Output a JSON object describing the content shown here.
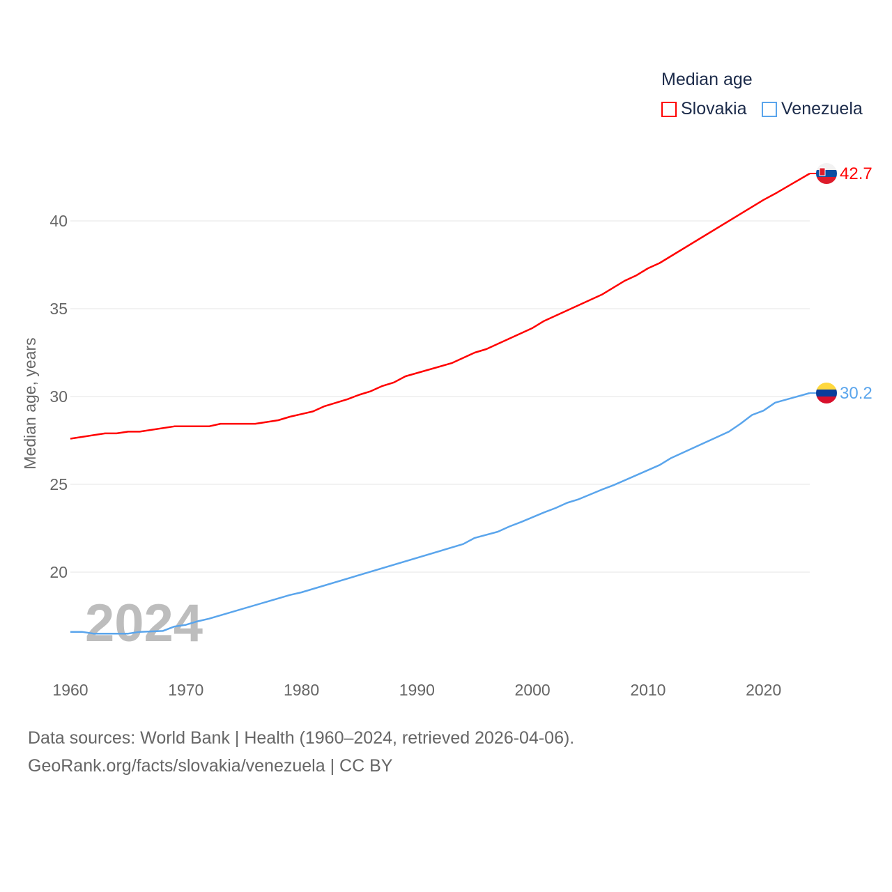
{
  "chart_data": {
    "type": "line",
    "legend_title": "Median age",
    "legend_position": "top-right",
    "ylabel": "Median age, years",
    "xlabel": "",
    "xlim": [
      1960,
      2024
    ],
    "ylim": [
      15.7,
      44
    ],
    "xticks": [
      "1960",
      "1970",
      "1980",
      "1990",
      "2000",
      "2010",
      "2020"
    ],
    "yticks": [
      "20",
      "25",
      "30",
      "35",
      "40"
    ],
    "grid": true,
    "year_label": "2024",
    "series": [
      {
        "name": "Slovakia",
        "color": "#ff0000",
        "end_label": "42.7",
        "x": [
          1960,
          1963,
          1964,
          1965,
          1966,
          1969,
          1972,
          1973,
          1976,
          1978,
          1979,
          1980,
          1981,
          1982,
          1984,
          1985,
          1986,
          1987,
          1988,
          1989,
          1993,
          1995,
          1996,
          2000,
          2001,
          2006,
          2008,
          2009,
          2010,
          2011,
          2020,
          2021,
          2024
        ],
        "y": [
          27.6,
          27.9,
          27.9,
          28.0,
          28.0,
          28.3,
          28.3,
          28.45,
          28.45,
          28.65,
          28.85,
          29.0,
          29.15,
          29.45,
          29.85,
          30.1,
          30.3,
          30.6,
          30.8,
          31.15,
          31.9,
          32.5,
          32.7,
          33.9,
          34.3,
          35.8,
          36.6,
          36.9,
          37.3,
          37.6,
          41.2,
          41.55,
          42.7
        ]
      },
      {
        "name": "Venezuela",
        "color": "#5aa5ec",
        "end_label": "30.2",
        "x": [
          1960,
          1961,
          1962,
          1965,
          1966,
          1968,
          1969,
          1970,
          1971,
          1972,
          1979,
          1980,
          1994,
          1995,
          1997,
          1998,
          1999,
          2001,
          2002,
          2003,
          2004,
          2006,
          2007,
          2011,
          2012,
          2017,
          2018,
          2019,
          2020,
          2021,
          2024
        ],
        "y": [
          16.6,
          16.6,
          16.5,
          16.5,
          16.6,
          16.65,
          16.9,
          17.0,
          17.2,
          17.35,
          18.7,
          18.85,
          21.6,
          21.95,
          22.3,
          22.6,
          22.85,
          23.4,
          23.65,
          23.95,
          24.15,
          24.7,
          24.95,
          26.1,
          26.5,
          28.0,
          28.45,
          28.95,
          29.2,
          29.65,
          30.2
        ]
      }
    ]
  },
  "footer": {
    "line1": "Data sources: World Bank | Health (1960–2024, retrieved 2026-04-06).",
    "line2": "GeoRank.org/facts/slovakia/venezuela | CC BY"
  }
}
